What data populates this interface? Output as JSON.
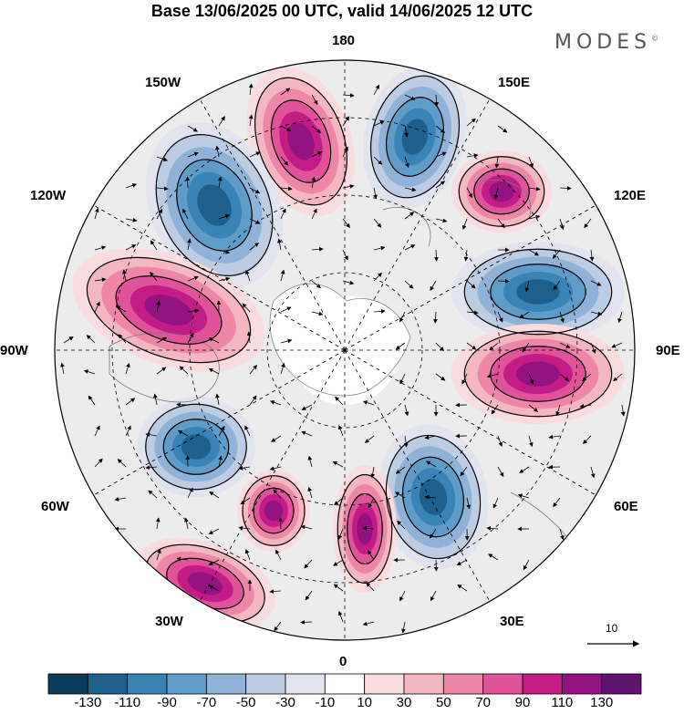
{
  "header": {
    "title": "Base 13/06/2025 00 UTC, valid 14/06/2025 12 UTC",
    "brand": "MODES",
    "brand_mark": "©"
  },
  "map": {
    "projection": "north polar stereographic",
    "field": "anomaly shaded with streamlines / wind vectors",
    "longitude_labels": {
      "lon_180": "180",
      "lon_150E": "150E",
      "lon_120E": "120E",
      "lon_90E": "90E",
      "lon_60E": "60E",
      "lon_30E": "30E",
      "lon_0": "0",
      "lon_30W": "30W",
      "lon_60W": "60W",
      "lon_90W": "90W",
      "lon_120W": "120W",
      "lon_150W": "150W"
    },
    "reference_vector": {
      "label": "10"
    }
  },
  "colorbar": {
    "colors": [
      "#0b3a5a",
      "#1f5f8b",
      "#3a83b6",
      "#5f9dc8",
      "#8eb3d6",
      "#bccce3",
      "#e1e3ee",
      "#ffffff",
      "#f8dcdf",
      "#f4b7c2",
      "#ee86a8",
      "#e0539a",
      "#c21c87",
      "#92137f",
      "#5e136f"
    ],
    "ticks": [
      "-130",
      "-110",
      "-90",
      "-70",
      "-50",
      "-30",
      "-10",
      "10",
      "30",
      "50",
      "70",
      "90",
      "110",
      "130"
    ]
  },
  "anomaly_colors": {
    "negative": "#3a83b6",
    "positive": "#e0539a",
    "neutral": "#f2f2f2"
  }
}
